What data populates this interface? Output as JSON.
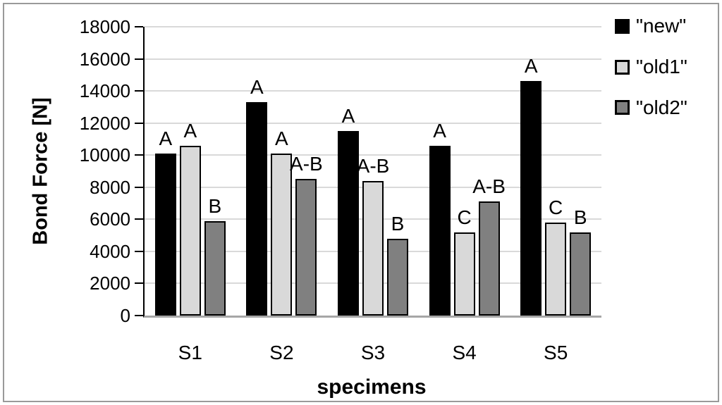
{
  "chart_data": {
    "type": "bar",
    "title": "",
    "xlabel": "specimens",
    "ylabel": "Bond Force [N]",
    "ylim": [
      0,
      18000
    ],
    "ytick_step": 2000,
    "ytick_labels": [
      "0",
      "2000",
      "4000",
      "6000",
      "8000",
      "10000",
      "12000",
      "14000",
      "16000",
      "18000"
    ],
    "categories": [
      "S1",
      "S2",
      "S3",
      "S4",
      "S5"
    ],
    "series": [
      {
        "name": "\"new\"",
        "color": "#000000",
        "values": [
          10100,
          13300,
          11500,
          10600,
          14600
        ],
        "bar_labels": [
          "A",
          "A",
          "A",
          "A",
          "A"
        ]
      },
      {
        "name": "\"old1\"",
        "color": "#d9d9d9",
        "values": [
          10600,
          10100,
          8400,
          5200,
          5800
        ],
        "bar_labels": [
          "A",
          "A",
          "A-B",
          "C",
          "C"
        ]
      },
      {
        "name": "\"old2\"",
        "color": "#808080",
        "values": [
          5900,
          8500,
          4800,
          7100,
          5200
        ],
        "bar_labels": [
          "B",
          "A-B",
          "B",
          "A-B",
          "B"
        ]
      }
    ],
    "legend_position": "top-right",
    "grid": true,
    "gridline_color": "#d9d9d9",
    "x_axis_color": "#a6a6a6",
    "y_axis_color": "#000000",
    "bar_border_color": "#000000",
    "frame_border_color": "#9a9a9a"
  }
}
